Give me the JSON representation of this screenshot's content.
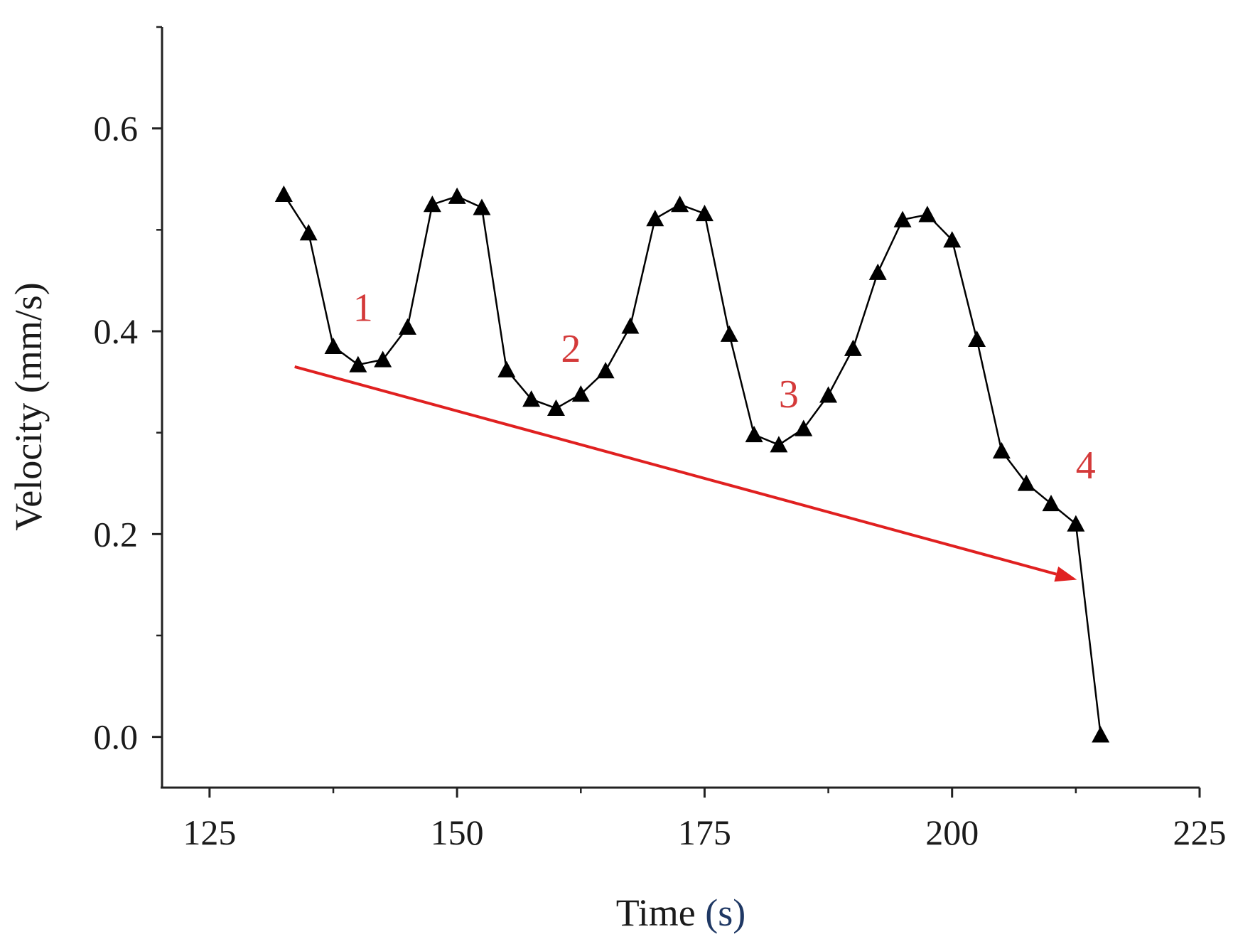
{
  "chart_data": {
    "type": "line",
    "title": "",
    "xlabel_prefix": "Time ",
    "xlabel_unit": "(s)",
    "ylabel": "Velocity (mm/s)",
    "xlim": [
      120.2,
      225
    ],
    "ylim": [
      -0.05,
      0.7
    ],
    "xticks": [
      125,
      150,
      175,
      200,
      225
    ],
    "xtick_labels": [
      "125",
      "150",
      "175",
      "200",
      "225"
    ],
    "yticks": [
      0.0,
      0.2,
      0.4,
      0.6
    ],
    "ytick_labels": [
      "0.0",
      "0.2",
      "0.4",
      "0.6"
    ],
    "grid": false,
    "series": [
      {
        "name": "Velocity",
        "marker": "triangle",
        "color": "#000000",
        "x": [
          132.5,
          135.0,
          137.5,
          140.0,
          142.5,
          145.0,
          147.5,
          150.0,
          152.5,
          155.0,
          157.5,
          160.0,
          162.5,
          165.0,
          167.5,
          170.0,
          172.5,
          175.0,
          177.5,
          180.0,
          182.5,
          185.0,
          187.5,
          190.0,
          192.5,
          195.0,
          197.5,
          200.0,
          202.5,
          205.0,
          207.5,
          210.0,
          212.5,
          215.0
        ],
        "y": [
          0.535,
          0.497,
          0.385,
          0.367,
          0.372,
          0.404,
          0.525,
          0.533,
          0.522,
          0.362,
          0.333,
          0.324,
          0.338,
          0.361,
          0.405,
          0.511,
          0.525,
          0.516,
          0.397,
          0.298,
          0.288,
          0.304,
          0.337,
          0.383,
          0.458,
          0.51,
          0.515,
          0.49,
          0.392,
          0.282,
          0.25,
          0.23,
          0.21,
          0.002
        ]
      }
    ],
    "annotations": [
      {
        "text": "1",
        "x": 140.5,
        "y": 0.41
      },
      {
        "text": "2",
        "x": 161.5,
        "y": 0.37
      },
      {
        "text": "3",
        "x": 183.5,
        "y": 0.325
      },
      {
        "text": "4",
        "x": 213.5,
        "y": 0.255
      }
    ],
    "trend_arrow": {
      "color": "#e02020",
      "from": [
        133.6,
        0.365
      ],
      "to": [
        212.6,
        0.155
      ]
    }
  }
}
